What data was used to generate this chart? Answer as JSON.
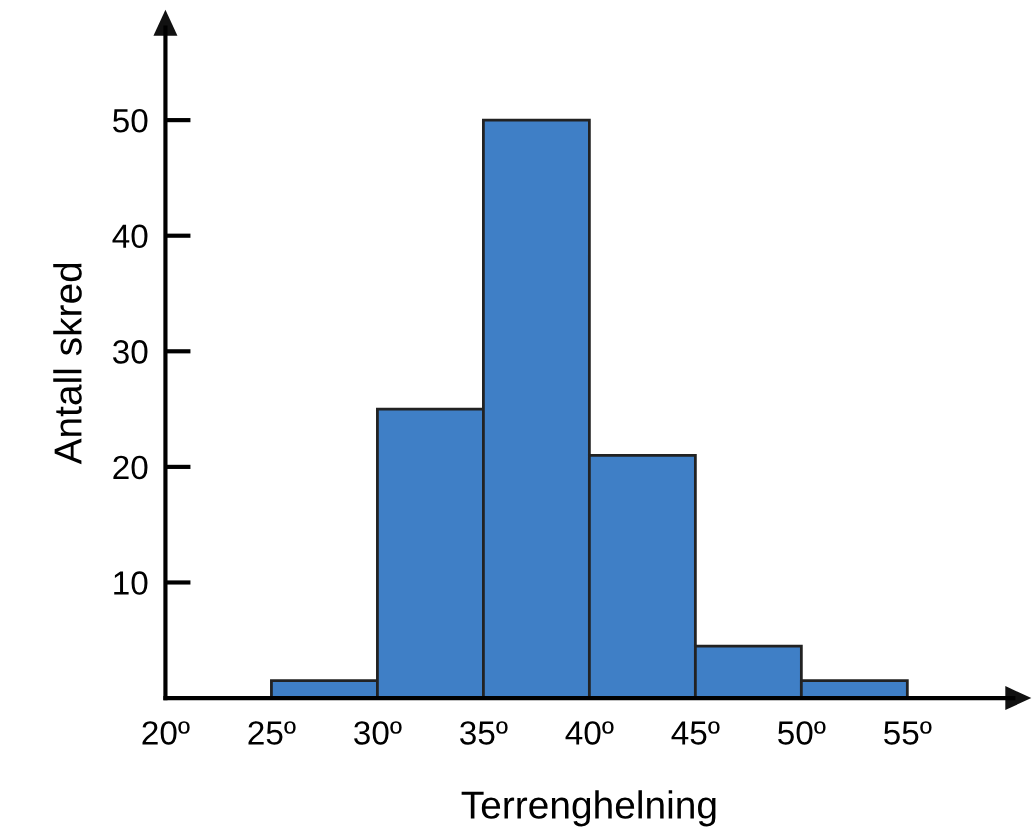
{
  "chart_data": {
    "type": "histogram",
    "xlabel": "Terrenghelning",
    "ylabel": "Antall skred",
    "bins": [
      25,
      30,
      35,
      40,
      45,
      50,
      55
    ],
    "values": [
      1.5,
      25,
      50,
      21,
      4.5,
      1.5
    ],
    "color": "#3f7fc6",
    "xlim": [
      20,
      60
    ],
    "xticks": [
      {
        "value": 20,
        "label": "20º"
      },
      {
        "value": 25,
        "label": "25º"
      },
      {
        "value": 30,
        "label": "30º"
      },
      {
        "value": 35,
        "label": "35º"
      },
      {
        "value": 40,
        "label": "40º"
      },
      {
        "value": 45,
        "label": "45º"
      },
      {
        "value": 50,
        "label": "50º"
      },
      {
        "value": 55,
        "label": "55º"
      }
    ],
    "ylim": [
      0,
      58
    ],
    "yticks": [
      10,
      20,
      30,
      40,
      50
    ],
    "grid": false
  }
}
